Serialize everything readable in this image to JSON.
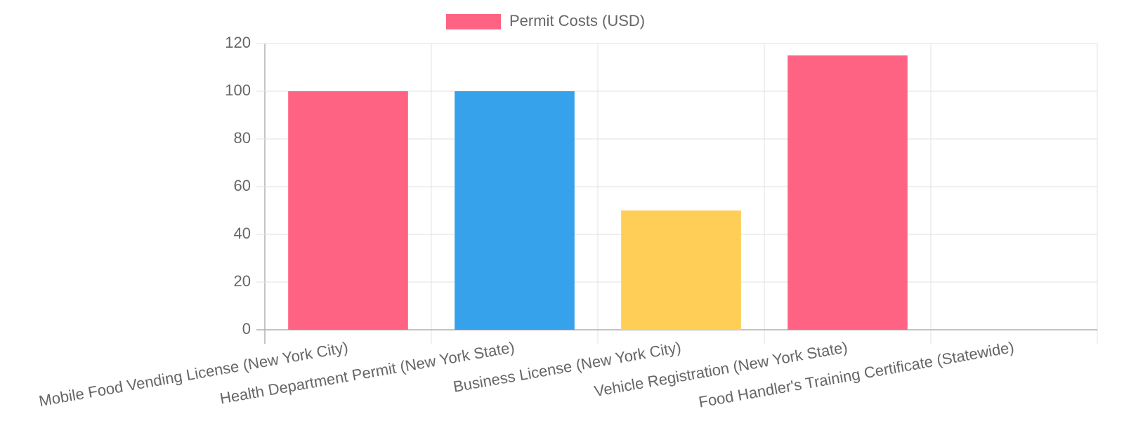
{
  "chart_data": {
    "type": "bar",
    "categories": [
      "Mobile Food Vending License (New York City)",
      "Health Department Permit (New York State)",
      "Business License (New York City)",
      "Vehicle Registration (New York State)",
      "Food Handler's Training Certificate (Statewide)"
    ],
    "series": [
      {
        "name": "Permit Costs (USD)",
        "colors": [
          "#ff6384",
          "#36a2eb",
          "#ffce56"
        ],
        "values": [
          100,
          100,
          50,
          115,
          0
        ]
      }
    ],
    "ylim": [
      0,
      120
    ],
    "yticks": [
      0,
      20,
      40,
      60,
      80,
      100,
      120
    ],
    "grid": true,
    "legend": "top"
  }
}
